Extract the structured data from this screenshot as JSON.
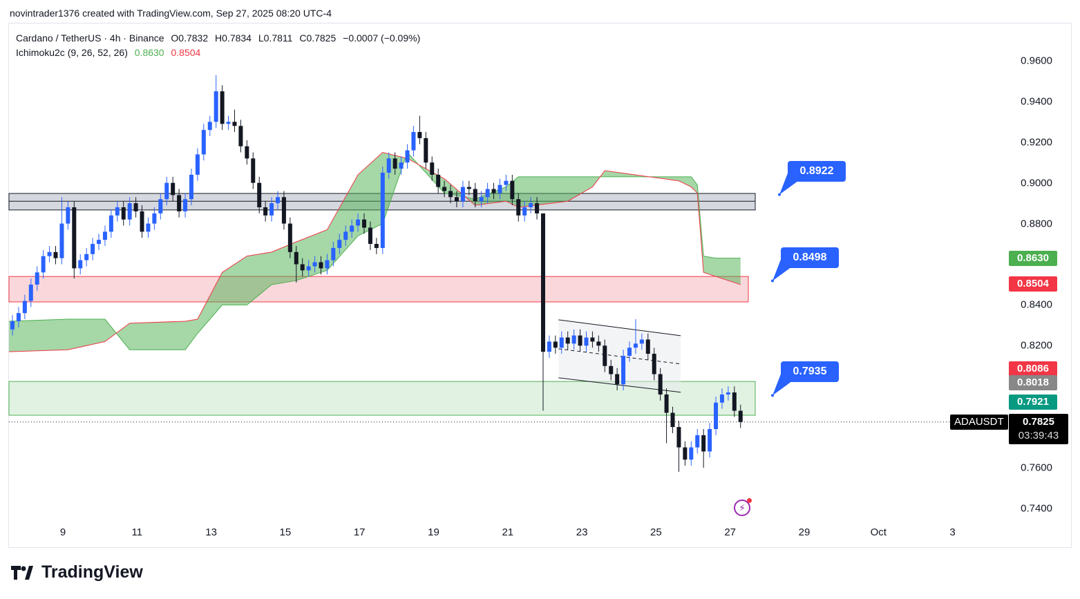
{
  "attribution": "novintrader1376 created with TradingView.com, Sep 27, 2025 08:20 UTC-4",
  "legend": {
    "symbol": "Cardano / TetherUS · 4h · Binance",
    "open": "O0.7832",
    "high": "H0.7834",
    "low": "L0.7811",
    "close": "C0.7825",
    "change": "−0.0007 (−0.09%)",
    "indicator": "Ichimoku2c (9, 26, 52, 26)",
    "ind_a": "0.8630",
    "ind_b": "0.8504"
  },
  "y_axis": [
    "0.9600",
    "0.9400",
    "0.9200",
    "0.9000",
    "0.8800",
    "0.8400",
    "0.8200",
    "0.7600",
    "0.7400"
  ],
  "y_axis_values": [
    0.96,
    0.94,
    0.92,
    0.9,
    0.88,
    0.84,
    0.82,
    0.76,
    0.74
  ],
  "x_axis": [
    "9",
    "11",
    "13",
    "15",
    "17",
    "19",
    "21",
    "23",
    "25",
    "27",
    "29",
    "Oct",
    "3"
  ],
  "price_tags": [
    {
      "label": "0.8630",
      "value": 0.863,
      "color": "#4caf50"
    },
    {
      "label": "0.8504",
      "value": 0.8504,
      "color": "#f23645"
    },
    {
      "label": "0.8086",
      "value": 0.8086,
      "color": "#f23645"
    },
    {
      "label": "0.8018",
      "value": 0.8018,
      "color": "#888888"
    },
    {
      "label": "0.7921",
      "value": 0.7921,
      "color": "#089981"
    }
  ],
  "symbol_tag": "ADAUSDT",
  "last_price": {
    "value": "0.7825",
    "countdown": "03:39:43",
    "price": 0.7825
  },
  "callouts": [
    {
      "label": "0.8922",
      "price": 0.8922
    },
    {
      "label": "0.8498",
      "price": 0.8498
    },
    {
      "label": "0.7935",
      "price": 0.7935
    }
  ],
  "zones": [
    {
      "name": "resistance-band",
      "top": 0.8948,
      "bottom": 0.8867,
      "mid": 0.891,
      "fill": "#d1d4dc",
      "stroke": "#131722"
    },
    {
      "name": "pink-zone",
      "top": 0.854,
      "bottom": 0.8415,
      "fill": "#f7c9cd",
      "stroke": "#f23645"
    },
    {
      "name": "support-zone",
      "top": 0.8024,
      "bottom": 0.7858,
      "fill": "#d8eed8",
      "stroke": "#4caf50"
    }
  ],
  "channel": {
    "start_index": 88.5,
    "end_index": 108.3
  },
  "colors": {
    "up": "#2962ff",
    "down": "#131722",
    "span_a": "#4caf50",
    "span_b": "#f23645",
    "cloud": "#4caf50"
  },
  "brand": "TradingView",
  "chart_data": {
    "type": "candlestick",
    "title": "Cardano / TetherUS · 4h · Binance",
    "ylim": [
      0.73,
      0.97
    ],
    "first_open": 0.828,
    "closes": [
      0.832,
      0.836,
      0.842,
      0.85,
      0.856,
      0.864,
      0.866,
      0.863,
      0.88,
      0.888,
      0.858,
      0.862,
      0.865,
      0.87,
      0.872,
      0.876,
      0.884,
      0.888,
      0.882,
      0.89,
      0.886,
      0.876,
      0.88,
      0.885,
      0.892,
      0.9,
      0.894,
      0.886,
      0.892,
      0.904,
      0.914,
      0.926,
      0.93,
      0.945,
      0.929,
      0.93,
      0.928,
      0.918,
      0.912,
      0.9,
      0.888,
      0.884,
      0.89,
      0.893,
      0.88,
      0.866,
      0.86,
      0.857,
      0.859,
      0.861,
      0.858,
      0.862,
      0.868,
      0.872,
      0.876,
      0.879,
      0.882,
      0.878,
      0.87,
      0.868,
      0.905,
      0.912,
      0.907,
      0.91,
      0.916,
      0.925,
      0.922,
      0.91,
      0.904,
      0.898,
      0.896,
      0.893,
      0.891,
      0.898,
      0.897,
      0.891,
      0.893,
      0.897,
      0.895,
      0.899,
      0.901,
      0.892,
      0.884,
      0.888,
      0.89,
      0.885,
      0.817,
      0.822,
      0.819,
      0.824,
      0.821,
      0.825,
      0.82,
      0.824,
      0.822,
      0.82,
      0.81,
      0.806,
      0.801,
      0.815,
      0.819,
      0.821,
      0.823,
      0.816,
      0.806,
      0.796,
      0.787,
      0.78,
      0.77,
      0.764,
      0.77,
      0.776,
      0.768,
      0.779,
      0.792,
      0.796,
      0.797,
      0.788,
      0.7825
    ],
    "high_overrides": {
      "8": 0.893,
      "33": 0.953,
      "36": 0.936,
      "66": 0.933,
      "86": 0.855,
      "101": 0.833
    },
    "low_overrides": {
      "10": 0.853,
      "46": 0.851,
      "86": 0.788,
      "106": 0.772,
      "108": 0.758,
      "112": 0.76
    },
    "ichimoku": {
      "points": [
        [
          0,
          0.832,
          0.817
        ],
        [
          9,
          0.833,
          0.818
        ],
        [
          15,
          0.833,
          0.822
        ],
        [
          19,
          0.818,
          0.831
        ],
        [
          28,
          0.818,
          0.832
        ],
        [
          30,
          0.826,
          0.833
        ],
        [
          34,
          0.84,
          0.856
        ],
        [
          38,
          0.84,
          0.864
        ],
        [
          42,
          0.85,
          0.866
        ],
        [
          46,
          0.852,
          0.871
        ],
        [
          51,
          0.857,
          0.877
        ],
        [
          56,
          0.874,
          0.904
        ],
        [
          60,
          0.88,
          0.915
        ],
        [
          64,
          0.915,
          0.912
        ],
        [
          70,
          0.895,
          0.902
        ],
        [
          75,
          0.892,
          0.889
        ],
        [
          80,
          0.898,
          0.891
        ],
        [
          82,
          0.903,
          0.888
        ],
        [
          90,
          0.903,
          0.891
        ],
        [
          94,
          0.903,
          0.898
        ],
        [
          96,
          0.903,
          0.906
        ],
        [
          108,
          0.903,
          0.901
        ],
        [
          110,
          0.903,
          0.898
        ],
        [
          111,
          0.899,
          0.895
        ],
        [
          112,
          0.864,
          0.856
        ],
        [
          114,
          0.863,
          0.854
        ],
        [
          118,
          0.863,
          0.85
        ]
      ]
    }
  }
}
